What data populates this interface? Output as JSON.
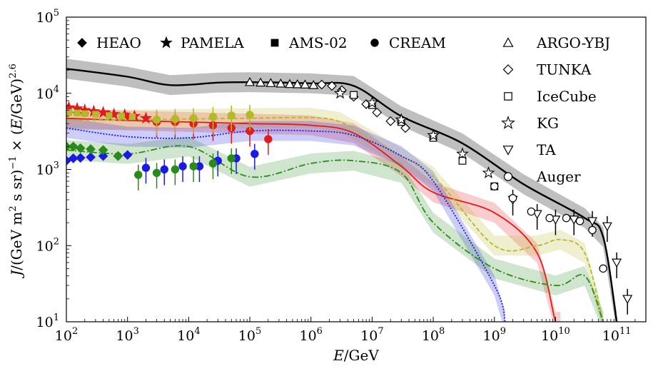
{
  "chart_data": {
    "type": "scatter",
    "xscale": "log",
    "yscale": "log",
    "xlim": [
      100,
      300000000000
    ],
    "ylim": [
      10,
      100000
    ],
    "xlabel": "E/GeV",
    "ylabel": "J/(GeV m2 s sr)−1 × (E/GeV)2.6",
    "x_tick_labels": [
      "10^2",
      "10^3",
      "10^4",
      "10^5",
      "10^6",
      "10^7",
      "10^8",
      "10^9",
      "10^10",
      "10^11"
    ],
    "y_tick_labels": [
      "10^1",
      "10^2",
      "10^3",
      "10^4",
      "10^5"
    ],
    "legend_left": [
      "HEAO",
      "PAMELA",
      "AMS-02",
      "CREAM"
    ],
    "legend_right": [
      "ARGO-YBJ",
      "TUNKA",
      "IceCube",
      "KG",
      "TA",
      "Auger"
    ],
    "legend_left_placement": "top-left",
    "legend_right_placement": "top-right",
    "colors": {
      "all": "#000000",
      "proton": "#e41a1c",
      "helium": "#b5b82a",
      "light_blue": "#1a1ae6",
      "green": "#2a8a1a"
    },
    "series": [
      {
        "key": "all",
        "color": "#000000",
        "x": [
          100,
          1000,
          5000,
          30000,
          100000,
          1000000,
          5000000,
          30000000,
          300000000,
          3000000000,
          30000000000,
          60000000000,
          100000000000
        ],
        "y": [
          21000,
          16500,
          12800,
          13800,
          14000,
          13500,
          12500,
          5000,
          2200,
          640,
          230,
          130,
          10
        ]
      },
      {
        "key": "proton",
        "color": "#e41a1c",
        "x": [
          100,
          1000,
          10000,
          100000,
          1000000,
          5000000,
          30000000,
          100000000,
          1000000000,
          5000000000,
          10000000000,
          12000000000
        ],
        "y": [
          4700,
          4400,
          4200,
          4000,
          3800,
          3000,
          1100,
          500,
          270,
          80,
          10,
          10
        ]
      },
      {
        "key": "helium",
        "color": "#b5b82a",
        "x": [
          100,
          1000,
          10000,
          100000,
          1000000,
          3000000,
          10000000,
          100000000,
          1000000000,
          5000000000,
          12000000000,
          30000000000,
          60000000000
        ],
        "y": [
          4400,
          4500,
          4600,
          4700,
          4800,
          4200,
          2400,
          800,
          100,
          100,
          120,
          80,
          10
        ]
      },
      {
        "key": "light_blue",
        "color": "#1a1ae6",
        "x": [
          100,
          1000,
          10000,
          100000,
          1000000,
          5000000,
          30000000,
          100000000,
          1000000000,
          1500000000
        ],
        "y": [
          3500,
          2700,
          2600,
          3200,
          3200,
          2800,
          1500,
          700,
          30,
          10
        ]
      },
      {
        "key": "green",
        "color": "#2a8a1a",
        "x": [
          100,
          1000,
          10000,
          100000,
          1000000,
          5000000,
          30000000,
          100000000,
          1000000000,
          10000000000,
          30000000000,
          60000000000
        ],
        "y": [
          1800,
          1600,
          2000,
          800,
          1200,
          1300,
          900,
          200,
          50,
          30,
          40,
          10
        ]
      }
    ],
    "points": {
      "HEAO_p": {
        "color": "#e41a1c",
        "x": [
          100,
          150,
          200,
          300,
          500,
          1000
        ],
        "y": [
          5500,
          5600,
          5500,
          5400,
          5300,
          5000
        ]
      },
      "HEAO_he": {
        "color": "#1a1ae6",
        "x": [
          100,
          130,
          170,
          250,
          400,
          700,
          1000
        ],
        "y": [
          1300,
          1400,
          1420,
          1450,
          1500,
          1500,
          1550
        ]
      },
      "HEAO_g": {
        "color": "#2a8a1a",
        "x": [
          100,
          130,
          170,
          250,
          400,
          700
        ],
        "y": [
          2000,
          2000,
          1900,
          1850,
          1800,
          1500
        ]
      },
      "PAMELA": {
        "color": "#e41a1c",
        "x": [
          110,
          150,
          200,
          280,
          400,
          600,
          900,
          1300,
          2000
        ],
        "y": [
          6500,
          6300,
          6000,
          5800,
          5600,
          5300,
          5200,
          5000,
          4700
        ]
      },
      "AMS02": {
        "color": "#b5b82a",
        "x": [
          110,
          150,
          200,
          300,
          500,
          800,
          1200
        ],
        "y": [
          5600,
          5500,
          5400,
          5300,
          5100,
          5000,
          4900
        ]
      },
      "CREAM_p": {
        "color": "#e41a1c",
        "x": [
          3000,
          6000,
          12000,
          25000,
          50000,
          100000,
          200000
        ],
        "y": [
          4200,
          4200,
          4000,
          3800,
          3500,
          3200,
          2500
        ]
      },
      "CREAM_he": {
        "color": "#b5b82a",
        "x": [
          3000,
          6000,
          12000,
          25000,
          50000,
          100000
        ],
        "y": [
          4500,
          4600,
          4700,
          4900,
          5100,
          5200
        ]
      },
      "CREAM_b": {
        "color": "#1a1ae6",
        "x": [
          2000,
          4000,
          8000,
          15000,
          30000,
          60000,
          120000
        ],
        "y": [
          1050,
          1000,
          1100,
          1100,
          1300,
          1400,
          1600
        ]
      },
      "CREAM_g": {
        "color": "#2a8a1a",
        "x": [
          1500,
          3000,
          6000,
          12000,
          25000,
          50000
        ],
        "y": [
          850,
          900,
          1000,
          1100,
          1200,
          1400
        ]
      },
      "ARGO": {
        "color": "#000000",
        "x": [
          100000,
          150000,
          220000,
          320000,
          450000,
          600000,
          800000,
          1100000
        ],
        "y": [
          14000,
          13800,
          13600,
          13400,
          13200,
          13100,
          13000,
          12800
        ]
      },
      "TUNKA": {
        "color": "#000000",
        "x": [
          1500000,
          2200000,
          3200000,
          5000000,
          8000000,
          12000000,
          20000000,
          35000000
        ],
        "y": [
          13000,
          12500,
          11000,
          9000,
          7200,
          5600,
          4300,
          3500
        ]
      },
      "IceCube": {
        "color": "#000000",
        "x": [
          5000000,
          10000000,
          30000000,
          100000000,
          300000000,
          1000000000
        ],
        "y": [
          9500,
          7000,
          4200,
          2600,
          1300,
          600
        ]
      },
      "KG": {
        "color": "#000000",
        "x": [
          3000000,
          10000000,
          30000000,
          100000000,
          300000000,
          800000000
        ],
        "y": [
          10000,
          7500,
          4500,
          2800,
          1600,
          900
        ]
      },
      "TA": {
        "color": "#000000",
        "x": [
          2000000000,
          5000000000,
          10000000000,
          20000000000,
          40000000000,
          70000000000,
          100000000000,
          150000000000
        ],
        "y": [
          400,
          260,
          220,
          220,
          210,
          180,
          60,
          20
        ]
      },
      "Auger": {
        "color": "#000000",
        "x": [
          1000000000,
          2000000000,
          4000000000,
          8000000000,
          15000000000,
          25000000000,
          40000000000,
          60000000000
        ],
        "y": [
          600,
          420,
          280,
          230,
          230,
          210,
          160,
          50
        ]
      }
    }
  }
}
